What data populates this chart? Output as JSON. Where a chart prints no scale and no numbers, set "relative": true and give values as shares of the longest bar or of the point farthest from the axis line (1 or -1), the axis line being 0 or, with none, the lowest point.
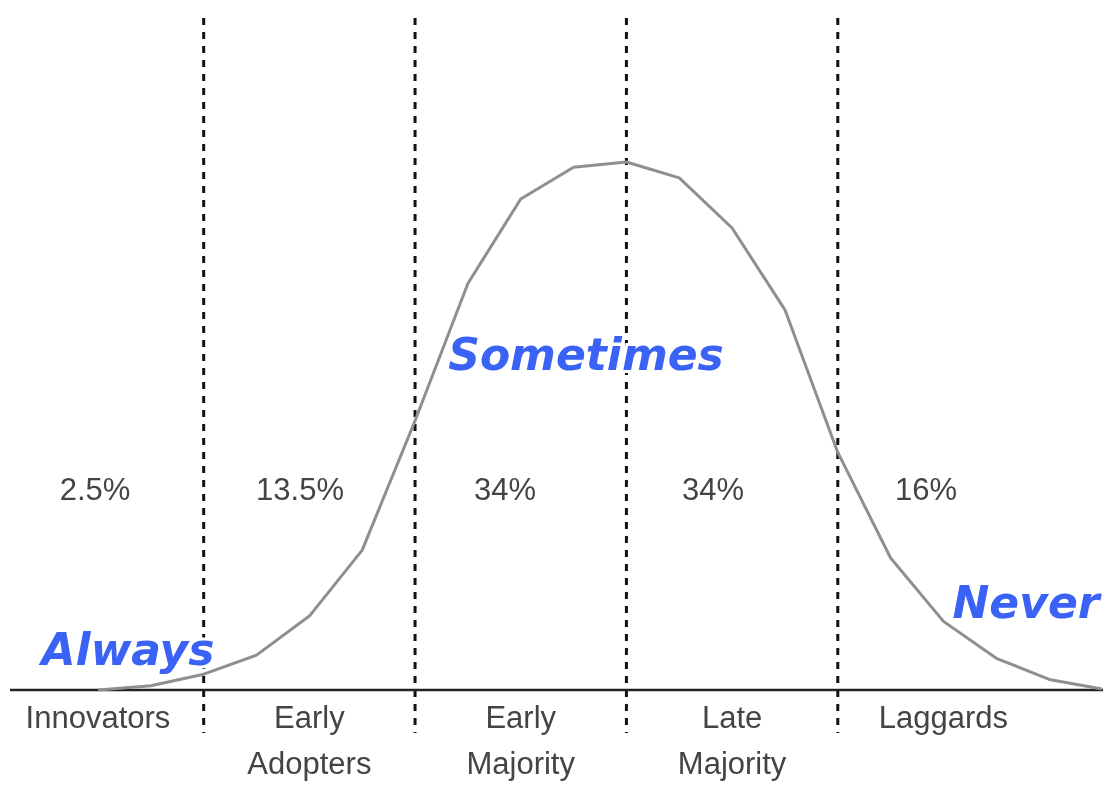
{
  "chart_data": {
    "type": "line",
    "relative": true,
    "categories": [
      "Innovators",
      null,
      null,
      null,
      "Early Adopters",
      null,
      null,
      null,
      "Early Majority",
      null,
      null,
      null,
      "Late Majority",
      null,
      null,
      null,
      "Laggards",
      null,
      null,
      null
    ],
    "series": [
      {
        "color": "#8c918e",
        "values": [
          0,
          0.008,
          0.03,
          0.066,
          0.14,
          0.265,
          0.51,
          0.77,
          0.93,
          0.99,
          1,
          0.97,
          0.875,
          0.72,
          0.45,
          0.25,
          0.13,
          0.06,
          0.02,
          0.002
        ]
      }
    ],
    "grid": "x",
    "annotations": [
      "2.5%",
      "13.5%",
      "34%",
      "34%",
      "16%",
      "Always",
      "Sometimes",
      "Never"
    ],
    "marker": "none",
    "line_style": "solid"
  }
}
